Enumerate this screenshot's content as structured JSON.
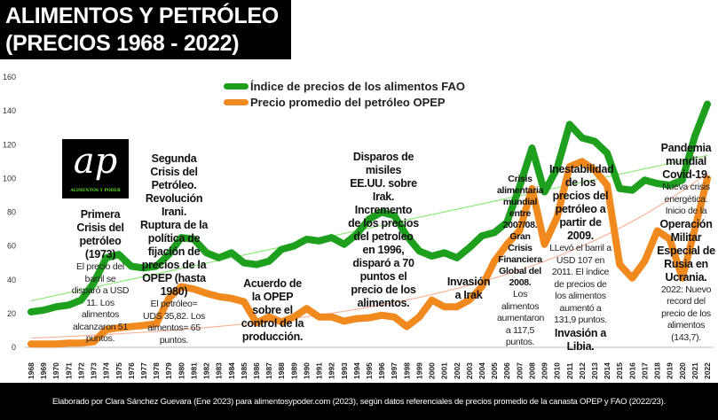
{
  "title": {
    "line1": "ALIMENTOS Y PETRÓLEO",
    "line2": "(PRECIOS 1968 - 2022)"
  },
  "logo": {
    "mark": "ap",
    "text": "ALIMENTOS Y PODER"
  },
  "footer": "Elaborado por Clara Sánchez Guevara (Ene 2023) para alimentosypoder.com  (2023), según datos referenciales de precios promedio de la canasta OPEP y FAO (2022/23).",
  "annotations": [
    {
      "bold": "Primera Crisis del petróleo (1973)",
      "normal": "El precio del barril se disparó a USD 11. Los alimentos alcanzaron 51 puntos."
    },
    {
      "bold": "Segunda Crisis del Petróleo. Revolución Irani. Ruptura de la política de fijación de precios de la OPEP (hasta 1980)",
      "normal": "El petróleo= UDS 35,82. Los aimentos= 65 puntos."
    },
    {
      "bold": "Acuerdo de la OPEP sobre el control de la producción.",
      "normal": ""
    },
    {
      "bold": "Disparos de misiles EE.UU. sobre Irak. Incremento de los precios del petroleo en 1996, disparó a 70 puntos el precio de los alimentos.",
      "normal": ""
    },
    {
      "bold": "Invasión a Irak",
      "normal": ""
    },
    {
      "bold": "Crisis alimentaria mundial entre 2007/08. Gran Crisis Financiera Global del 2008.",
      "normal": "Los alimentos aumentaron a 117,5 puntos."
    },
    {
      "bold": "Inestabilidad de los precios del petróleo a partir de 2009.",
      "normal": "LLevó el barril a USD 107 en 2011. El índice de precios de los alimentos aumentó a 131,9 puntos.",
      "bold2": "Invasión a Libia."
    },
    {
      "bold": "Pandemia mundial Covid-19.",
      "normal": "Nueva crisis energética. Inicio de la",
      "bold2": "Operación Militar Especial de Rusia en Ucrania.",
      "normal2": "2022: Nuevo record del precio de los alimentos (143,7)."
    }
  ],
  "chart_data": {
    "type": "line",
    "title": "ALIMENTOS Y PETRÓLEO (PRECIOS 1968 - 2022)",
    "xlabel": "",
    "ylabel": "",
    "ylim": [
      0,
      160
    ],
    "yticks": [
      "0",
      "20",
      "40",
      "60",
      "80",
      "100",
      "120",
      "140",
      "160"
    ],
    "grid": false,
    "legend_placement": "top-center",
    "x": [
      "1968",
      "1969",
      "1970",
      "1971",
      "1972",
      "1973",
      "1974",
      "1975",
      "1976",
      "1977",
      "1978",
      "1979",
      "1980",
      "1981",
      "1982",
      "1983",
      "1984",
      "1985",
      "1986",
      "1987",
      "1988",
      "1989",
      "1990",
      "1991",
      "1992",
      "1993",
      "1994",
      "1995",
      "1996",
      "1997",
      "1998",
      "1999",
      "2000",
      "2001",
      "2002",
      "2003",
      "2004",
      "2005",
      "2006",
      "2007",
      "2008",
      "2009",
      "2010",
      "2011",
      "2012",
      "2013",
      "2014",
      "2015",
      "2016",
      "2017",
      "2018",
      "2019",
      "2020",
      "2021",
      "2022"
    ],
    "series": [
      {
        "name": "Índice de precios de los alimentos FAO",
        "color": "#1ea01e",
        "trend_color": "#8fe87a",
        "trend": "linear",
        "values": [
          21,
          22,
          24,
          25,
          28,
          38,
          53,
          55,
          48,
          47,
          48,
          55,
          65,
          64,
          56,
          53,
          56,
          50,
          49,
          51,
          58,
          60,
          64,
          63,
          65,
          61,
          67,
          76,
          80,
          78,
          66,
          57,
          54,
          56,
          53,
          59,
          66,
          68,
          74,
          95,
          118,
          92,
          106,
          132,
          124,
          122,
          115,
          94,
          93,
          99,
          97,
          96,
          99,
          125,
          144
        ]
      },
      {
        "name": "Precio promedio del petróleo OPEP",
        "color": "#f0891e",
        "trend_color": "#f7b49a",
        "trend": "exponential",
        "values": [
          2,
          2,
          2,
          2.5,
          2.5,
          3.3,
          10.5,
          11.5,
          12.3,
          13,
          14,
          29,
          36,
          34.5,
          32,
          30,
          29,
          27,
          14.5,
          18,
          15,
          18,
          23,
          18,
          18,
          15.5,
          17,
          17.5,
          19,
          18,
          12.3,
          18,
          28,
          24,
          24,
          28,
          36,
          51,
          61,
          69,
          94,
          61,
          77,
          107,
          110,
          105,
          96,
          49,
          41,
          51,
          69,
          64,
          41,
          70,
          100
        ]
      }
    ]
  }
}
